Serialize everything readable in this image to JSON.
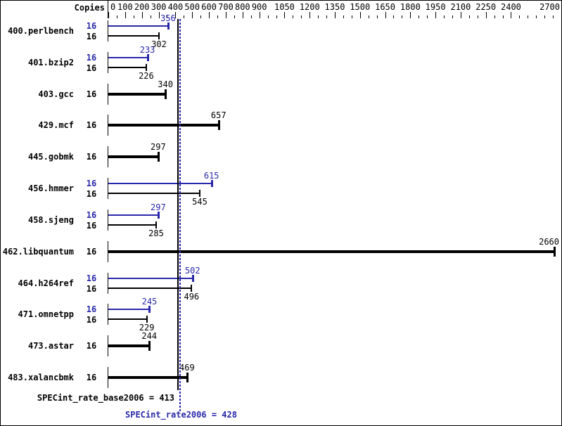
{
  "header": {
    "copies_label": "Copies"
  },
  "chart_data": {
    "type": "bar",
    "orientation": "horizontal",
    "axis": {
      "min": 0,
      "max": 2700,
      "tick_labels": [
        0,
        100,
        200,
        300,
        400,
        500,
        600,
        700,
        800,
        900,
        1050,
        1200,
        1350,
        1500,
        1650,
        1800,
        1950,
        2100,
        2250,
        2400,
        2700
      ],
      "minor_tick_step": 50,
      "position": "top"
    },
    "legend": {
      "base_color": "#000000",
      "peak_color": "#2828aa"
    },
    "benchmarks": [
      {
        "name": "400.perlbench",
        "copies": 16,
        "peak": 356,
        "base": 302
      },
      {
        "name": "401.bzip2",
        "copies": 16,
        "peak": 233,
        "base": 226
      },
      {
        "name": "403.gcc",
        "copies": 16,
        "base": 340
      },
      {
        "name": "429.mcf",
        "copies": 16,
        "base": 657
      },
      {
        "name": "445.gobmk",
        "copies": 16,
        "base": 297
      },
      {
        "name": "456.hmmer",
        "copies": 16,
        "peak": 615,
        "base": 545
      },
      {
        "name": "458.sjeng",
        "copies": 16,
        "peak": 297,
        "base": 285
      },
      {
        "name": "462.libquantum",
        "copies": 16,
        "base": 2660
      },
      {
        "name": "464.h264ref",
        "copies": 16,
        "peak": 502,
        "base": 496
      },
      {
        "name": "471.omnetpp",
        "copies": 16,
        "peak": 245,
        "base": 229
      },
      {
        "name": "473.astar",
        "copies": 16,
        "base": 244
      },
      {
        "name": "483.xalancbmk",
        "copies": 16,
        "base": 469
      }
    ],
    "reference_lines": [
      {
        "value": 413,
        "style": "solid",
        "color": "#000000",
        "label": "SPECint_rate_base2006"
      },
      {
        "value": 428,
        "style": "dotted",
        "color": "#2828aa",
        "label": "SPECint_rate2006"
      }
    ]
  },
  "summary": {
    "base_text": "SPECint_rate_base2006 = 413",
    "peak_text": "SPECint_rate2006 = 428"
  }
}
